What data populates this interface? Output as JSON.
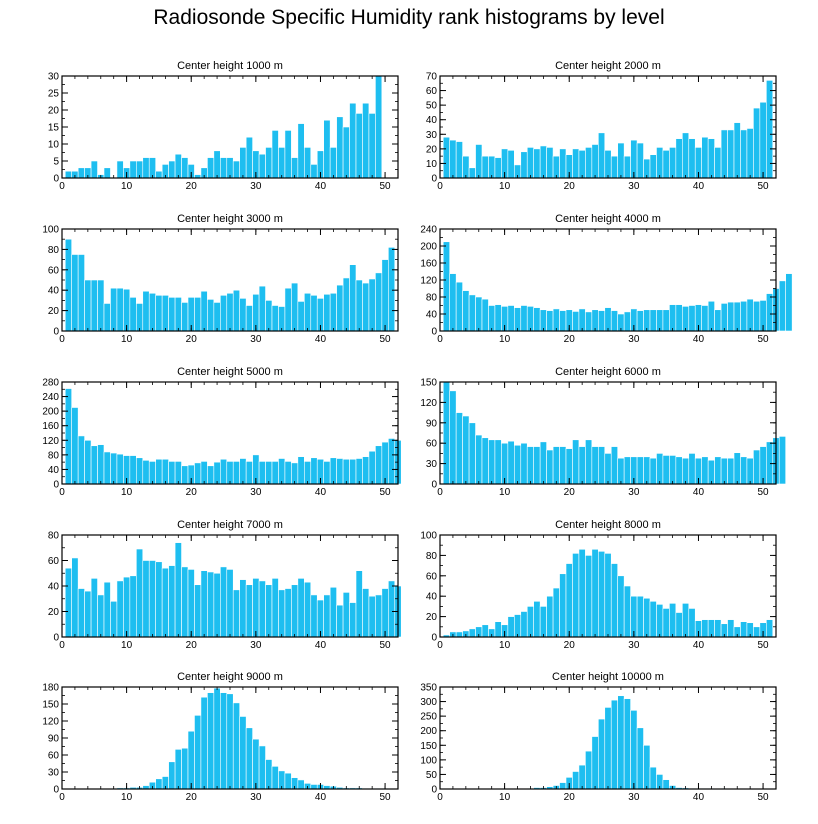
{
  "title": "Radiosonde Specific Humidity rank histograms by level",
  "colors": {
    "bar": "#1EBEF0",
    "bar_edge": "#ffffff",
    "axis": "#000000"
  },
  "chart_data": [
    {
      "type": "bar",
      "title": "Center height 1000 m",
      "xlabel": "",
      "ylabel": "",
      "xlim": [
        0,
        52
      ],
      "ylim": [
        0,
        30
      ],
      "xticks": [
        0,
        10,
        20,
        30,
        40,
        50
      ],
      "yticks": [
        0,
        5,
        10,
        15,
        20,
        25,
        30
      ],
      "values": [
        2,
        2,
        3,
        3,
        5,
        1,
        3,
        0,
        5,
        3,
        5,
        5,
        6,
        6,
        2,
        4,
        5,
        7,
        6,
        4,
        1,
        3,
        6,
        8,
        6,
        6,
        5,
        9,
        12,
        8,
        7,
        9,
        14,
        9,
        14,
        6,
        16,
        9,
        4,
        8,
        17,
        9,
        18,
        15,
        22,
        19,
        22,
        19,
        30
      ]
    },
    {
      "type": "bar",
      "title": "Center height 2000 m",
      "xlabel": "",
      "ylabel": "",
      "xlim": [
        0,
        52
      ],
      "ylim": [
        0,
        70
      ],
      "xticks": [
        0,
        10,
        20,
        30,
        40,
        50
      ],
      "yticks": [
        0,
        10,
        20,
        30,
        40,
        50,
        60,
        70
      ],
      "values": [
        28,
        26,
        25,
        15,
        7,
        23,
        15,
        15,
        14,
        20,
        19,
        9,
        18,
        21,
        20,
        22,
        21,
        15,
        20,
        16,
        20,
        19,
        21,
        23,
        31,
        19,
        15,
        24,
        15,
        26,
        24,
        13,
        16,
        21,
        19,
        21,
        27,
        31,
        27,
        21,
        28,
        27,
        21,
        33,
        33,
        38,
        33,
        34,
        48,
        52,
        67
      ]
    },
    {
      "type": "bar",
      "title": "Center height 3000 m",
      "xlabel": "",
      "ylabel": "",
      "xlim": [
        0,
        52
      ],
      "ylim": [
        0,
        100
      ],
      "xticks": [
        0,
        10,
        20,
        30,
        40,
        50
      ],
      "yticks": [
        0,
        20,
        40,
        60,
        80,
        100
      ],
      "values": [
        90,
        75,
        75,
        50,
        50,
        50,
        27,
        42,
        42,
        41,
        33,
        27,
        39,
        37,
        35,
        35,
        33,
        33,
        28,
        33,
        33,
        39,
        31,
        28,
        35,
        37,
        40,
        32,
        25,
        36,
        44,
        30,
        25,
        24,
        42,
        47,
        29,
        37,
        35,
        32,
        36,
        37,
        45,
        52,
        65,
        50,
        47,
        51,
        57,
        70,
        82
      ]
    },
    {
      "type": "bar",
      "title": "Center height 4000 m",
      "xlabel": "",
      "ylabel": "",
      "xlim": [
        0,
        52
      ],
      "ylim": [
        0,
        240
      ],
      "xticks": [
        0,
        10,
        20,
        30,
        40,
        50
      ],
      "yticks": [
        0,
        40,
        80,
        120,
        160,
        200,
        240
      ],
      "values": [
        210,
        135,
        115,
        95,
        85,
        80,
        75,
        60,
        62,
        58,
        60,
        55,
        60,
        58,
        55,
        50,
        48,
        52,
        48,
        50,
        46,
        52,
        45,
        50,
        48,
        55,
        48,
        40,
        45,
        52,
        48,
        50,
        50,
        50,
        50,
        62,
        62,
        58,
        60,
        62,
        60,
        70,
        50,
        65,
        68,
        68,
        70,
        75,
        70,
        72,
        88,
        100,
        118,
        135
      ]
    },
    {
      "type": "bar",
      "title": "Center height 5000 m",
      "xlabel": "",
      "ylabel": "",
      "xlim": [
        0,
        52
      ],
      "ylim": [
        0,
        280
      ],
      "xticks": [
        0,
        10,
        20,
        30,
        40,
        50
      ],
      "yticks": [
        0,
        40,
        80,
        120,
        160,
        200,
        240,
        280
      ],
      "values": [
        262,
        210,
        132,
        120,
        105,
        108,
        88,
        85,
        82,
        78,
        78,
        72,
        65,
        62,
        68,
        68,
        62,
        62,
        50,
        52,
        58,
        62,
        50,
        60,
        68,
        62,
        62,
        70,
        62,
        80,
        62,
        62,
        62,
        70,
        62,
        58,
        75,
        62,
        72,
        68,
        62,
        72,
        70,
        68,
        68,
        70,
        75,
        90,
        105,
        115,
        125,
        120
      ]
    },
    {
      "type": "bar",
      "title": "Center height 6000 m",
      "xlabel": "",
      "ylabel": "",
      "xlim": [
        0,
        52
      ],
      "ylim": [
        0,
        150
      ],
      "xticks": [
        0,
        10,
        20,
        30,
        40,
        50
      ],
      "yticks": [
        0,
        30,
        60,
        90,
        120,
        150
      ],
      "values": [
        150,
        137,
        105,
        100,
        90,
        72,
        68,
        65,
        65,
        60,
        63,
        57,
        60,
        55,
        55,
        62,
        50,
        55,
        55,
        52,
        65,
        55,
        65,
        55,
        55,
        45,
        55,
        38,
        40,
        40,
        40,
        40,
        38,
        45,
        42,
        42,
        40,
        38,
        45,
        38,
        40,
        35,
        40,
        38,
        38,
        46,
        40,
        38,
        50,
        55,
        62,
        68,
        70
      ]
    },
    {
      "type": "bar",
      "title": "Center height 7000 m",
      "xlabel": "",
      "ylabel": "",
      "xlim": [
        0,
        52
      ],
      "ylim": [
        0,
        80
      ],
      "xticks": [
        0,
        10,
        20,
        30,
        40,
        50
      ],
      "yticks": [
        0,
        20,
        40,
        60,
        80
      ],
      "values": [
        54,
        62,
        38,
        36,
        46,
        33,
        43,
        28,
        44,
        47,
        48,
        69,
        60,
        60,
        59,
        54,
        56,
        74,
        55,
        53,
        41,
        52,
        51,
        50,
        55,
        53,
        37,
        45,
        41,
        46,
        44,
        41,
        46,
        37,
        38,
        41,
        46,
        43,
        33,
        29,
        33,
        39,
        25,
        35,
        27,
        52,
        38,
        32,
        33,
        38,
        44,
        40
      ]
    },
    {
      "type": "bar",
      "title": "Center height 8000 m",
      "xlabel": "",
      "ylabel": "",
      "xlim": [
        0,
        52
      ],
      "ylim": [
        0,
        100
      ],
      "xticks": [
        0,
        10,
        20,
        30,
        40,
        50
      ],
      "yticks": [
        0,
        20,
        40,
        60,
        80,
        100
      ],
      "values": [
        2,
        5,
        5,
        6,
        8,
        10,
        12,
        8,
        15,
        12,
        20,
        22,
        25,
        30,
        35,
        30,
        40,
        48,
        62,
        72,
        82,
        86,
        80,
        86,
        84,
        82,
        72,
        60,
        50,
        40,
        40,
        38,
        35,
        32,
        28,
        33,
        24,
        33,
        28,
        16,
        17,
        17,
        17,
        13,
        17,
        10,
        15,
        14,
        10,
        14,
        17
      ]
    },
    {
      "type": "bar",
      "title": "Center height 9000 m",
      "xlabel": "",
      "ylabel": "",
      "xlim": [
        0,
        52
      ],
      "ylim": [
        0,
        180
      ],
      "xticks": [
        0,
        10,
        20,
        30,
        40,
        50
      ],
      "yticks": [
        0,
        30,
        60,
        90,
        120,
        150,
        180
      ],
      "values": [
        0,
        0,
        0,
        0,
        0,
        0,
        0,
        1,
        2,
        2,
        3,
        3,
        6,
        12,
        18,
        22,
        48,
        70,
        72,
        102,
        130,
        162,
        170,
        178,
        170,
        168,
        152,
        128,
        108,
        88,
        76,
        52,
        40,
        32,
        28,
        20,
        16,
        10,
        8,
        8,
        6,
        5,
        3,
        2,
        2,
        2,
        1,
        1,
        1,
        1,
        0
      ]
    },
    {
      "type": "bar",
      "title": "Center height 10000 m",
      "xlabel": "",
      "ylabel": "",
      "xlim": [
        0,
        52
      ],
      "ylim": [
        0,
        350
      ],
      "xticks": [
        0,
        10,
        20,
        30,
        40,
        50
      ],
      "yticks": [
        0,
        50,
        100,
        150,
        200,
        250,
        300,
        350
      ],
      "values": [
        0,
        0,
        0,
        0,
        0,
        0,
        0,
        0,
        0,
        0,
        0,
        0,
        0,
        2,
        5,
        5,
        8,
        12,
        22,
        40,
        60,
        82,
        130,
        180,
        240,
        280,
        305,
        320,
        310,
        270,
        210,
        150,
        75,
        50,
        32,
        12,
        5,
        4,
        2,
        2,
        2,
        2,
        1,
        2,
        1,
        1,
        1,
        1,
        1,
        1,
        0
      ]
    }
  ]
}
